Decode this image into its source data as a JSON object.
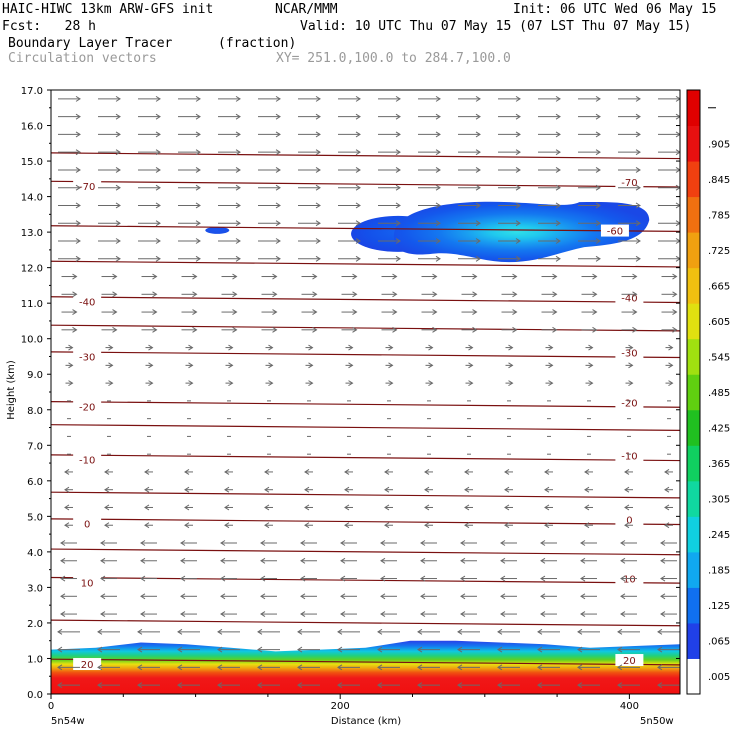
{
  "header": {
    "line1_left": "HAIC-HIWC 13km ARW-GFS init",
    "line1_mid": "NCAR/MMM",
    "line1_right": "Init: 06 UTC Wed 06 May 15",
    "line2_left": "Fcst:   28 h",
    "line2_right": "Valid: 10 UTC Thu 07 May 15 (07 LST Thu 07 May 15)",
    "field_name": "Boundary Layer Tracer",
    "field_unit": "(fraction)",
    "vector_label": "Circulation vectors",
    "xy_label": "XY= 251.0,100.0 to 284.7,100.0"
  },
  "chart_data": {
    "type": "heatmap",
    "xlabel": "Distance (km)",
    "ylabel": "Height (km)",
    "xlim": [
      0,
      435
    ],
    "ylim": [
      0,
      17
    ],
    "x_ticks": [
      0,
      200,
      400
    ],
    "x_tick_labels": [
      "0",
      "200",
      "400"
    ],
    "y_ticks": [
      0,
      1,
      2,
      3,
      4,
      5,
      6,
      7,
      8,
      9,
      10,
      11,
      12,
      13,
      14,
      15,
      16,
      17
    ],
    "y_tick_labels": [
      "0.0",
      "1.0",
      "2.0",
      "3.0",
      "4.0",
      "5.0",
      "6.0",
      "7.0",
      "8.0",
      "9.0",
      "10.0",
      "11.0",
      "12.0",
      "13.0",
      "14.0",
      "15.0",
      "16.0",
      "17.0"
    ],
    "endpoint_labels": [
      "5n54w",
      "5n50w"
    ],
    "colorbar": {
      "levels": [
        ".005",
        ".065",
        ".125",
        ".185",
        ".245",
        ".305",
        ".365",
        ".425",
        ".485",
        ".545",
        ".605",
        ".665",
        ".725",
        ".785",
        ".845",
        ".905"
      ],
      "colors": [
        "#ffffff",
        "#2040e8",
        "#1070f0",
        "#10a8f0",
        "#10d0e0",
        "#10d8a0",
        "#10d060",
        "#20c020",
        "#60d010",
        "#a0e010",
        "#e0e010",
        "#f0c010",
        "#f0a010",
        "#f07010",
        "#f04010",
        "#e81010",
        "#e00000"
      ]
    },
    "series": [
      {
        "name": "Boundary Layer Tracer",
        "regions": [
          {
            "kind": "boundary_layer",
            "x_range": [
              0,
              435
            ],
            "top_km_values": [
              1.25,
              1.3,
              1.45,
              1.4,
              1.3,
              1.2,
              1.25,
              1.3,
              1.5,
              1.5,
              1.45,
              1.4,
              1.3,
              1.35,
              1.4
            ]
          },
          {
            "kind": "cloud_patch",
            "x_center": 115,
            "z_center": 13.05,
            "peak": 0.005
          },
          {
            "kind": "cloud_patch",
            "x_center": 240,
            "z_center": 12.95,
            "peak": 0.065
          },
          {
            "kind": "cloud_patch",
            "x_center": 310,
            "z_center": 13.0,
            "peak": 0.245
          }
        ]
      }
    ],
    "isotherms_c": [
      {
        "height_km": 14.35,
        "value": -70,
        "labels": [
          "-70",
          "-70"
        ]
      },
      {
        "height_km": 13.1,
        "value": -60,
        "labels": [
          "-60"
        ]
      },
      {
        "height_km": 11.1,
        "value": -40,
        "labels": [
          "-40",
          "-40"
        ]
      },
      {
        "height_km": 9.55,
        "value": -30,
        "labels": [
          "-30",
          "-30"
        ]
      },
      {
        "height_km": 8.15,
        "value": -20,
        "labels": [
          "-20",
          "-20"
        ]
      },
      {
        "height_km": 6.65,
        "value": -10,
        "labels": [
          "-10",
          "-10"
        ]
      },
      {
        "height_km": 4.85,
        "value": 0,
        "labels": [
          "0",
          "0"
        ]
      },
      {
        "height_km": 3.2,
        "value": 10,
        "labels": [
          "10",
          "10"
        ]
      },
      {
        "height_km": 0.9,
        "value": 20,
        "labels": [
          "20",
          "20"
        ]
      }
    ],
    "grid": false
  }
}
